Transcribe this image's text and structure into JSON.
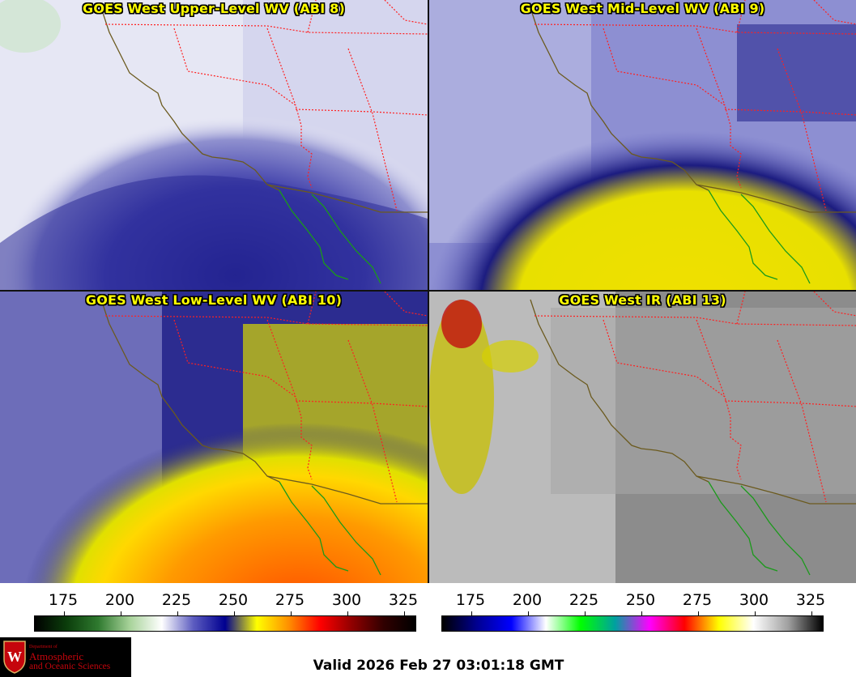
{
  "panels": [
    {
      "title": "GOES West Upper-Level WV (ABI 8)",
      "scheme": "wv-upper"
    },
    {
      "title": "GOES West Mid-Level WV (ABI 9)",
      "scheme": "wv-mid"
    },
    {
      "title": "GOES West Low-Level WV (ABI 10)",
      "scheme": "wv-low"
    },
    {
      "title": "GOES West IR (ABI 13)",
      "scheme": "ir"
    }
  ],
  "colorbars": [
    {
      "name": "water-vapor",
      "ticks": [
        "175",
        "200",
        "225",
        "250",
        "275",
        "300",
        "325"
      ],
      "colors": [
        "#000000",
        "#0b3d0b",
        "#2f7a2f",
        "#a8d39a",
        "#ffffff",
        "#5c5cc0",
        "#000090",
        "#ffff00",
        "#ff9000",
        "#ff0000",
        "#900000",
        "#300000",
        "#000000"
      ]
    },
    {
      "name": "infrared",
      "ticks": [
        "175",
        "200",
        "225",
        "250",
        "275",
        "300",
        "325"
      ],
      "colors": [
        "#000000",
        "#000090",
        "#0000ff",
        "#ffffff",
        "#00ff00",
        "#00a0a0",
        "#ff00ff",
        "#ff0000",
        "#ffff00",
        "#ffffff",
        "#a0a0a0",
        "#000000"
      ]
    }
  ],
  "logo": {
    "dept": "Department of",
    "line1": "Atmospheric",
    "line2": "and Oceanic Sciences"
  },
  "valid_time": "Valid 2026 Feb 27 03:01:18 GMT",
  "colors": {
    "coast": "#6b5a1e",
    "state_border": "#ff2020",
    "mexico_border": "#1a9a1a",
    "title_text": "#ffff00"
  }
}
